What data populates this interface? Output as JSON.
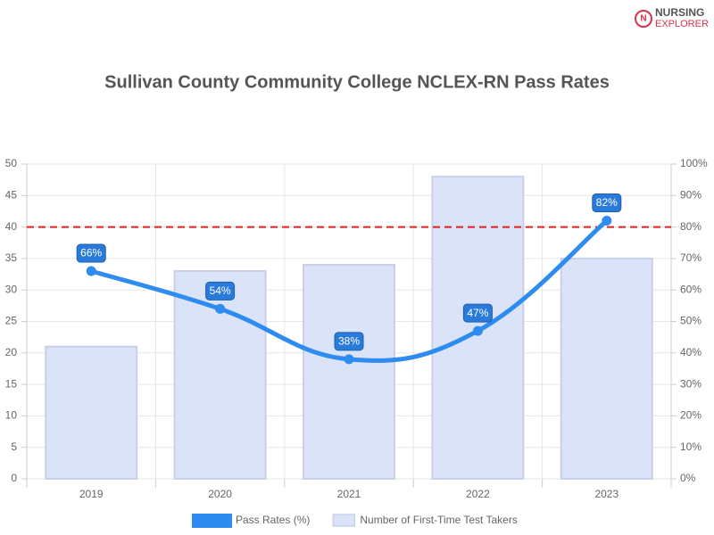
{
  "logo": {
    "line1": "NURSING",
    "line2": "EXPLORER"
  },
  "chart_data": {
    "type": "bar",
    "title": "Sullivan County Community College NCLEX-RN Pass Rates",
    "categories": [
      "2019",
      "2020",
      "2021",
      "2022",
      "2023"
    ],
    "series": [
      {
        "name": "Pass Rates (%)",
        "type": "line",
        "axis": "y2",
        "color": "#2e8bef",
        "values": [
          66,
          54,
          38,
          47,
          82
        ],
        "value_labels": [
          "66%",
          "54%",
          "38%",
          "47%",
          "82%"
        ]
      },
      {
        "name": "Number of First-Time Test Takers",
        "type": "bar",
        "color": "#dbe3f8",
        "values": [
          21,
          33,
          34,
          48,
          35
        ]
      }
    ],
    "ylim": [
      0,
      50
    ],
    "yticks": [
      0,
      5,
      10,
      15,
      20,
      25,
      30,
      35,
      40,
      45,
      50
    ],
    "y2lim": [
      0,
      100
    ],
    "y2ticks": [
      {
        "value": 0,
        "label": "0%"
      },
      {
        "value": 10,
        "label": "10%"
      },
      {
        "value": 20,
        "label": "20%"
      },
      {
        "value": 30,
        "label": "30%"
      },
      {
        "value": 40,
        "label": "40%"
      },
      {
        "value": 50,
        "label": "50%"
      },
      {
        "value": 60,
        "label": "60%"
      },
      {
        "value": 70,
        "label": "70%"
      },
      {
        "value": 80,
        "label": "80%"
      },
      {
        "value": 90,
        "label": "90%"
      },
      {
        "value": 100,
        "label": "100%"
      }
    ],
    "reference_line_y2": 80,
    "reference_color": "#e02020",
    "grid": true
  }
}
